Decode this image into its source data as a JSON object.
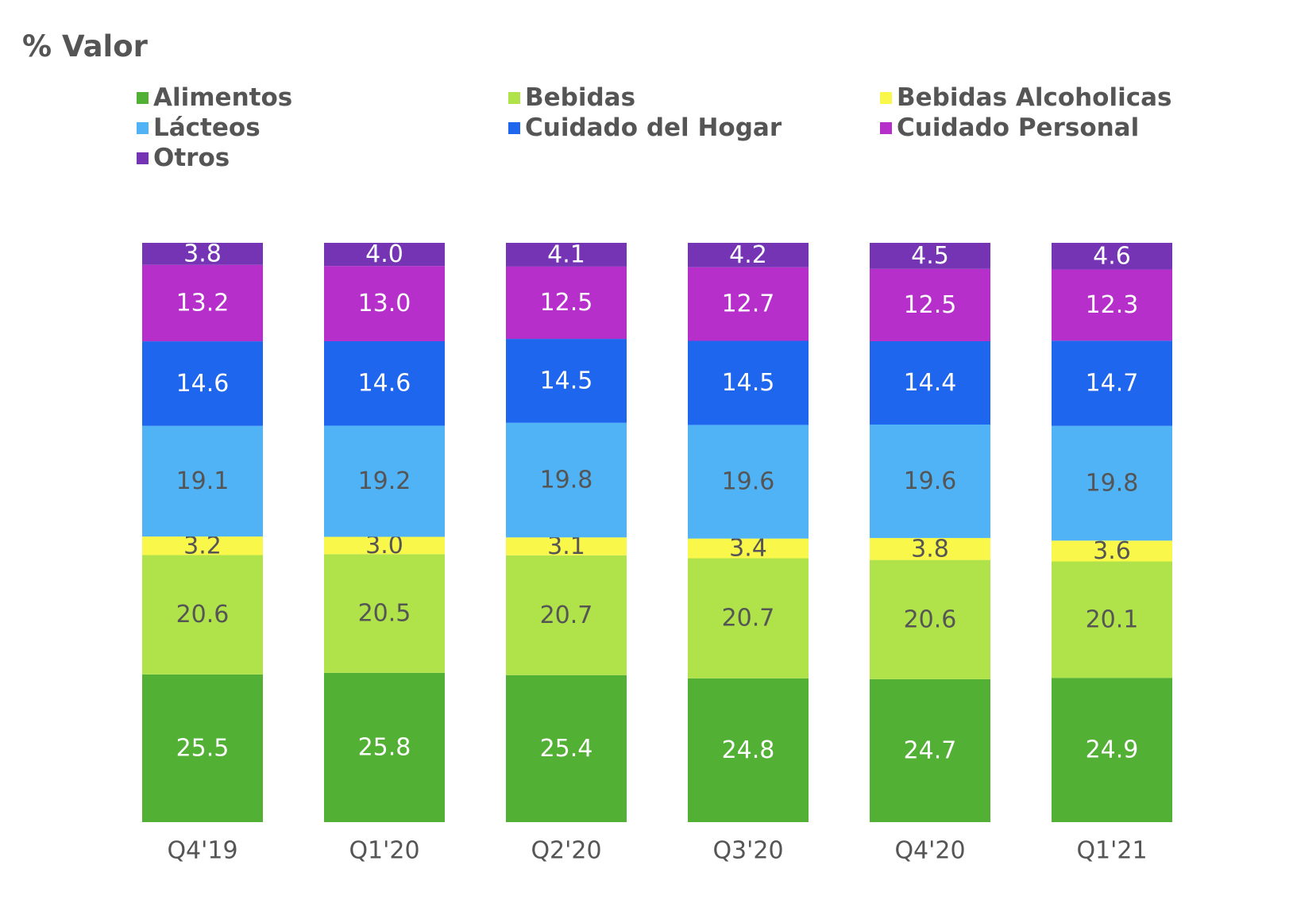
{
  "chart_data": {
    "type": "bar",
    "stacked": true,
    "title": "% Valor",
    "categories": [
      "Q4'19",
      "Q1'20",
      "Q2'20",
      "Q3'20",
      "Q4'20",
      "Q1'21"
    ],
    "series": [
      {
        "name": "Alimentos",
        "color": "#52b035",
        "label_color": "#ffffff",
        "values": [
          25.5,
          25.8,
          25.4,
          24.8,
          24.7,
          24.9
        ]
      },
      {
        "name": "Bebidas",
        "color": "#b0e34a",
        "label_color": "#555555",
        "values": [
          20.6,
          20.5,
          20.7,
          20.7,
          20.6,
          20.1
        ]
      },
      {
        "name": "Bebidas Alcoholicas",
        "color": "#f9f74a",
        "label_color": "#555555",
        "values": [
          3.2,
          3.0,
          3.1,
          3.4,
          3.8,
          3.6
        ]
      },
      {
        "name": "Lácteos",
        "color": "#4fb3f6",
        "label_color": "#555555",
        "values": [
          19.1,
          19.2,
          19.8,
          19.6,
          19.6,
          19.8
        ]
      },
      {
        "name": "Cuidado del Hogar",
        "color": "#1f66ef",
        "label_color": "#ffffff",
        "values": [
          14.6,
          14.6,
          14.5,
          14.5,
          14.4,
          14.7
        ]
      },
      {
        "name": "Cuidado Personal",
        "color": "#b72fcb",
        "label_color": "#ffffff",
        "values": [
          13.2,
          13.0,
          12.5,
          12.7,
          12.5,
          12.3
        ]
      },
      {
        "name": "Otros",
        "color": "#7434b4",
        "label_color": "#ffffff",
        "values": [
          3.8,
          4.0,
          4.1,
          4.2,
          4.5,
          4.6
        ]
      }
    ],
    "labels": [
      [
        "25.5",
        "25.8",
        "25.4",
        "24.8",
        "24.7",
        "24.9"
      ],
      [
        "20.6",
        "20.5",
        "20.7",
        "20.7",
        "20.6",
        "20.1"
      ],
      [
        "3.2",
        "3.0",
        "3.1",
        "3.4",
        "3.8",
        "3.6"
      ],
      [
        "19.1",
        "19.2",
        "19.8",
        "19.6",
        "19.6",
        "19.8"
      ],
      [
        "14.6",
        "14.6",
        "14.5",
        "14.5",
        "14.4",
        "14.7"
      ],
      [
        "13.2",
        "13.0",
        "12.5",
        "12.7",
        "12.5",
        "12.3"
      ],
      [
        "3.8",
        "4.0",
        "4.1",
        "4.2",
        "4.5",
        "4.6"
      ]
    ],
    "legend_position": "top",
    "grid": false,
    "ylim": [
      0,
      100
    ]
  }
}
